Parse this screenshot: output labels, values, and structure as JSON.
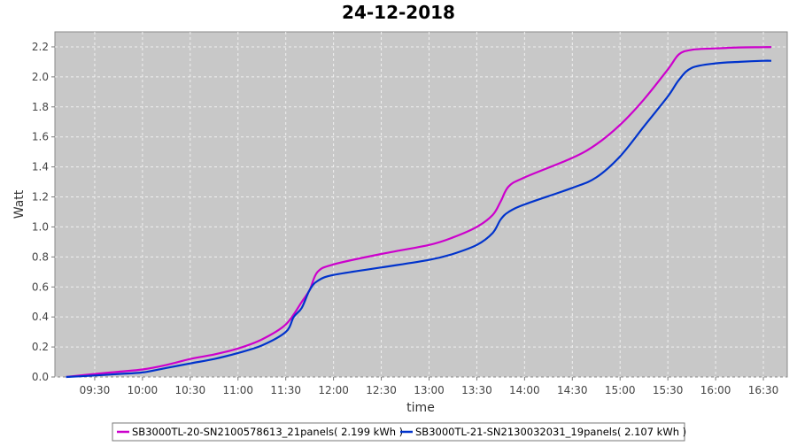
{
  "chart_data": {
    "type": "line",
    "title": "24-12-2018",
    "xlabel": "time",
    "ylabel": "Watt",
    "x_unit": "time of day",
    "xlim": [
      "09:05",
      "16:45"
    ],
    "ylim": [
      0,
      2.3
    ],
    "x_ticks": [
      "09:30",
      "10:00",
      "10:30",
      "11:00",
      "11:30",
      "12:00",
      "12:30",
      "13:00",
      "13:30",
      "14:00",
      "14:30",
      "15:00",
      "15:30",
      "16:00",
      "16:30"
    ],
    "y_ticks": [
      "0.0",
      "0.2",
      "0.4",
      "0.6",
      "0.8",
      "1.0",
      "1.2",
      "1.4",
      "1.6",
      "1.8",
      "2.0",
      "2.2"
    ],
    "grid": true,
    "legend_position": "bottom",
    "series": [
      {
        "name": "SB3000TL-20-SN2100578613_21panels( 2.199 kWh )",
        "color": "#cc00cc",
        "x": [
          "09:12",
          "09:30",
          "09:45",
          "10:00",
          "10:15",
          "10:30",
          "10:45",
          "11:00",
          "11:15",
          "11:30",
          "11:40",
          "11:45",
          "11:50",
          "12:00",
          "12:30",
          "13:00",
          "13:15",
          "13:30",
          "13:40",
          "13:45",
          "13:50",
          "14:00",
          "14:30",
          "14:45",
          "15:00",
          "15:15",
          "15:30",
          "15:37",
          "15:45",
          "16:00",
          "16:15",
          "16:30",
          "16:35"
        ],
        "values": [
          0.0,
          0.02,
          0.035,
          0.05,
          0.08,
          0.12,
          0.15,
          0.19,
          0.25,
          0.35,
          0.5,
          0.58,
          0.7,
          0.75,
          0.82,
          0.88,
          0.93,
          1.0,
          1.08,
          1.17,
          1.27,
          1.33,
          1.46,
          1.55,
          1.68,
          1.85,
          2.05,
          2.15,
          2.18,
          2.19,
          2.196,
          2.198,
          2.199
        ]
      },
      {
        "name": "SB3000TL-21-SN2130032031_19panels( 2.107 kWh )",
        "color": "#0033cc",
        "x": [
          "09:12",
          "09:30",
          "09:45",
          "10:00",
          "10:15",
          "10:30",
          "10:45",
          "11:00",
          "11:15",
          "11:30",
          "11:35",
          "11:40",
          "11:45",
          "11:50",
          "12:00",
          "12:30",
          "13:00",
          "13:15",
          "13:30",
          "13:40",
          "13:45",
          "13:50",
          "14:00",
          "14:30",
          "14:45",
          "15:00",
          "15:15",
          "15:30",
          "15:37",
          "15:45",
          "16:00",
          "16:15",
          "16:30",
          "16:35"
        ],
        "values": [
          0.0,
          0.01,
          0.02,
          0.03,
          0.06,
          0.09,
          0.12,
          0.16,
          0.21,
          0.3,
          0.4,
          0.46,
          0.58,
          0.64,
          0.68,
          0.73,
          0.78,
          0.82,
          0.88,
          0.96,
          1.05,
          1.1,
          1.15,
          1.26,
          1.33,
          1.47,
          1.67,
          1.87,
          1.98,
          2.06,
          2.09,
          2.1,
          2.107,
          2.107
        ]
      }
    ]
  }
}
